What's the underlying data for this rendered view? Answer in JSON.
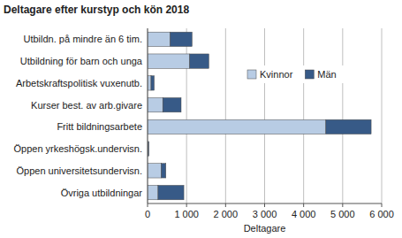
{
  "chart_data": {
    "type": "bar",
    "title": "Deltagare efter kurstyp och kön 2018",
    "orientation": "horizontal",
    "stacked": true,
    "grid": true,
    "legend": "right",
    "x_label": "Deltagare",
    "categories": [
      "Utbildn. på mindre än 6 tim.",
      "Utbildning för barn och unga",
      "Arbetskraftspolitisk vuxenutb.",
      "Kurser best. av arb.givare",
      "Fritt bildningsarbete",
      "Öppen yrkeshögsk.undervisn.",
      "Öppen universitetsundervisn.",
      "Övriga utbildningar"
    ],
    "series": [
      {
        "name": "Kvinnor",
        "color": "#b8cce4",
        "values": [
          580,
          1080,
          90,
          390,
          4570,
          20,
          350,
          270
        ]
      },
      {
        "name": "Män",
        "color": "#375a87",
        "values": [
          560,
          490,
          80,
          470,
          1160,
          15,
          120,
          660
        ]
      }
    ],
    "xlim": [
      0,
      6000
    ],
    "xticks": [
      0,
      {
        "value": 1000,
        "label": "1 000"
      },
      {
        "value": 2000,
        "label": "2 000"
      },
      {
        "value": 3000,
        "label": "3 000"
      },
      {
        "value": 4000,
        "label": "4 000"
      },
      {
        "value": 5000,
        "label": "5 000"
      },
      {
        "value": 6000,
        "label": "6 000"
      }
    ]
  }
}
